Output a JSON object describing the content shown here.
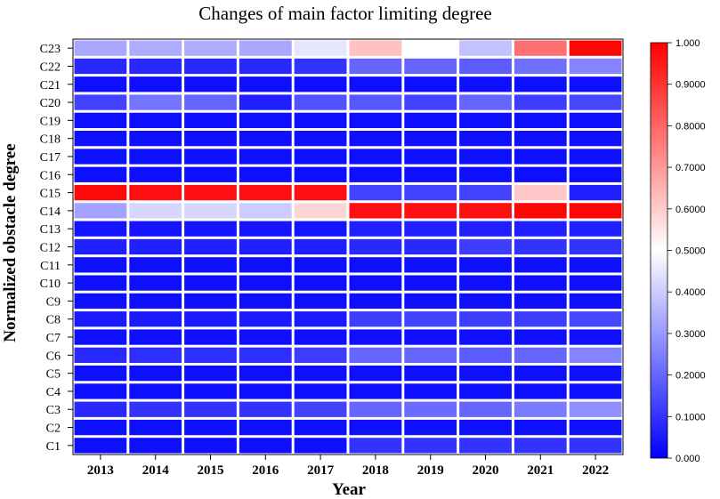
{
  "chart_data": {
    "type": "heatmap",
    "title": "Changes of main factor limiting degree",
    "xlabel": "Year",
    "ylabel": "Normalized obstacle degree",
    "x": [
      "2013",
      "2014",
      "2015",
      "2016",
      "2017",
      "2018",
      "2019",
      "2020",
      "2021",
      "2022"
    ],
    "y": [
      "C23",
      "C22",
      "C21",
      "C20",
      "C19",
      "C18",
      "C17",
      "C16",
      "C15",
      "C14",
      "C13",
      "C12",
      "C11",
      "C10",
      "C9",
      "C8",
      "C7",
      "C6",
      "C5",
      "C4",
      "C3",
      "C2",
      "C1"
    ],
    "values": [
      [
        0.33,
        0.34,
        0.34,
        0.33,
        0.45,
        0.62,
        0.5,
        0.38,
        0.78,
        0.99
      ],
      [
        0.08,
        0.08,
        0.08,
        0.08,
        0.1,
        0.2,
        0.2,
        0.18,
        0.22,
        0.26
      ],
      [
        0.03,
        0.03,
        0.03,
        0.03,
        0.03,
        0.03,
        0.03,
        0.03,
        0.03,
        0.03
      ],
      [
        0.13,
        0.23,
        0.2,
        0.06,
        0.16,
        0.17,
        0.13,
        0.2,
        0.12,
        0.14
      ],
      [
        0.03,
        0.03,
        0.03,
        0.03,
        0.03,
        0.03,
        0.03,
        0.03,
        0.03,
        0.03
      ],
      [
        0.03,
        0.03,
        0.03,
        0.03,
        0.03,
        0.03,
        0.03,
        0.03,
        0.03,
        0.03
      ],
      [
        0.03,
        0.03,
        0.03,
        0.03,
        0.03,
        0.03,
        0.03,
        0.03,
        0.03,
        0.03
      ],
      [
        0.03,
        0.03,
        0.03,
        0.03,
        0.03,
        0.03,
        0.03,
        0.03,
        0.03,
        0.03
      ],
      [
        0.98,
        0.97,
        0.97,
        0.97,
        0.97,
        0.13,
        0.13,
        0.13,
        0.61,
        0.06
      ],
      [
        0.32,
        0.42,
        0.42,
        0.4,
        0.58,
        0.97,
        0.97,
        0.97,
        0.99,
        0.99
      ],
      [
        0.04,
        0.04,
        0.04,
        0.04,
        0.04,
        0.06,
        0.06,
        0.06,
        0.06,
        0.06
      ],
      [
        0.06,
        0.06,
        0.06,
        0.06,
        0.06,
        0.08,
        0.08,
        0.12,
        0.1,
        0.1
      ],
      [
        0.03,
        0.03,
        0.03,
        0.03,
        0.03,
        0.03,
        0.03,
        0.03,
        0.03,
        0.03
      ],
      [
        0.03,
        0.03,
        0.03,
        0.03,
        0.03,
        0.03,
        0.03,
        0.03,
        0.03,
        0.03
      ],
      [
        0.03,
        0.03,
        0.03,
        0.03,
        0.03,
        0.03,
        0.03,
        0.03,
        0.03,
        0.03
      ],
      [
        0.05,
        0.05,
        0.05,
        0.05,
        0.05,
        0.12,
        0.13,
        0.12,
        0.12,
        0.14
      ],
      [
        0.03,
        0.03,
        0.03,
        0.03,
        0.03,
        0.03,
        0.03,
        0.03,
        0.03,
        0.03
      ],
      [
        0.08,
        0.09,
        0.09,
        0.09,
        0.12,
        0.2,
        0.2,
        0.18,
        0.2,
        0.26
      ],
      [
        0.03,
        0.03,
        0.03,
        0.03,
        0.03,
        0.03,
        0.03,
        0.03,
        0.03,
        0.03
      ],
      [
        0.03,
        0.03,
        0.03,
        0.03,
        0.03,
        0.03,
        0.03,
        0.03,
        0.03,
        0.03
      ],
      [
        0.08,
        0.1,
        0.1,
        0.1,
        0.13,
        0.2,
        0.21,
        0.2,
        0.24,
        0.28
      ],
      [
        0.03,
        0.03,
        0.03,
        0.03,
        0.03,
        0.03,
        0.03,
        0.03,
        0.03,
        0.03
      ],
      [
        0.03,
        0.03,
        0.03,
        0.03,
        0.03,
        0.1,
        0.1,
        0.1,
        0.1,
        0.1
      ]
    ],
    "colorbar": {
      "min": 0,
      "max": 1,
      "ticks": [
        "0.000",
        "0.1000",
        "0.2000",
        "0.3000",
        "0.4000",
        "0.5000",
        "0.6000",
        "0.7000",
        "0.8000",
        "0.9000",
        "1.000"
      ],
      "colors": [
        "#0000ff",
        "#ffffff",
        "#ff0000"
      ]
    },
    "grid": true,
    "legend": "right"
  }
}
